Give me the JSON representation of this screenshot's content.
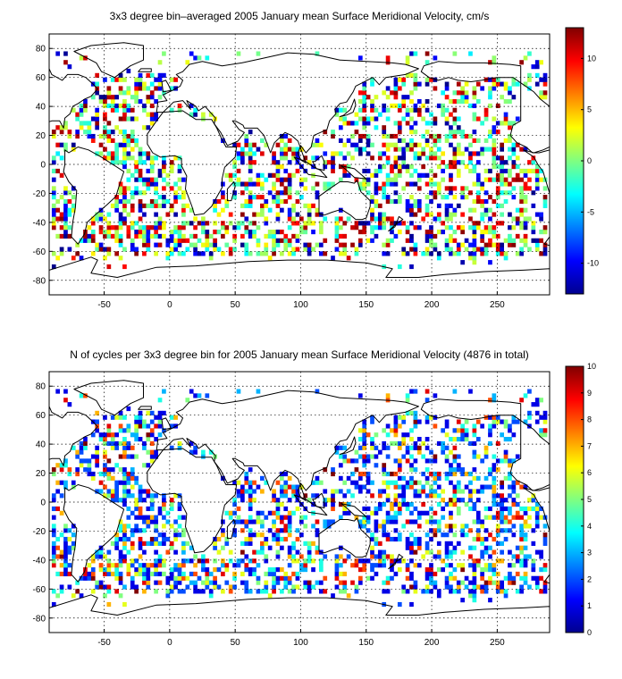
{
  "chart_data": [
    {
      "type": "heatmap",
      "title": "3x3 degree bin–averaged 2005 January mean Surface Meridional Velocity, cm/s",
      "xlabel": "",
      "ylabel": "",
      "xlim": [
        -92,
        290
      ],
      "ylim": [
        -90,
        90
      ],
      "x_ticks": [
        -50,
        0,
        50,
        100,
        150,
        200,
        250
      ],
      "y_ticks": [
        -80,
        -60,
        -40,
        -20,
        0,
        20,
        40,
        60,
        80
      ],
      "grid": true,
      "bin_size_deg": 3,
      "colormap": "jet",
      "colorbar": {
        "range": [
          -13,
          13
        ],
        "ticks": [
          -10,
          -5,
          0,
          5,
          10
        ],
        "placement": "right"
      },
      "fill_fraction_ocean": 0.42,
      "value_mode": "velocity"
    },
    {
      "type": "heatmap",
      "title": "N of cycles per 3x3 degree bin for 2005 January mean Surface Meridional Velocity (4876 in total)",
      "xlabel": "",
      "ylabel": "",
      "xlim": [
        -92,
        290
      ],
      "ylim": [
        -90,
        90
      ],
      "x_ticks": [
        -50,
        0,
        50,
        100,
        150,
        200,
        250
      ],
      "y_ticks": [
        -80,
        -60,
        -40,
        -20,
        0,
        20,
        40,
        60,
        80
      ],
      "grid": true,
      "bin_size_deg": 3,
      "colormap": "jet",
      "colorbar": {
        "range": [
          0,
          10
        ],
        "ticks": [
          0,
          1,
          2,
          3,
          4,
          5,
          6,
          7,
          8,
          9,
          10
        ],
        "placement": "right"
      },
      "total_cycles": 4876,
      "value_mode": "counts"
    }
  ]
}
